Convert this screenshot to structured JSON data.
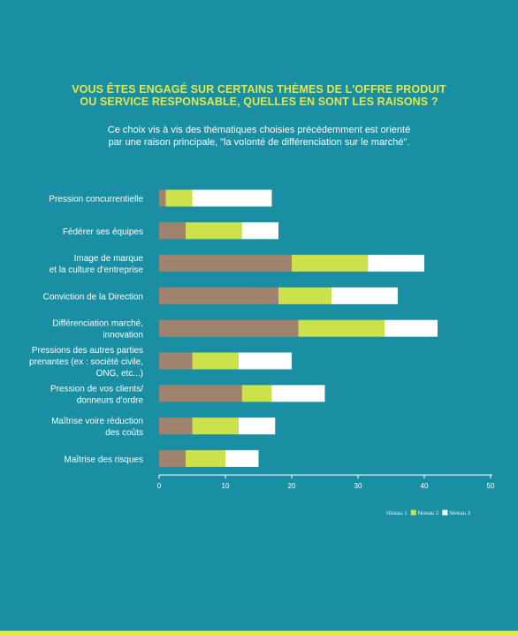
{
  "header": {
    "title_line1": "VOUS ÊTES ENGAGÉ SUR CERTAINS THÈMES DE L'OFFRE PRODUIT",
    "title_line2": "OU SERVICE RESPONSABLE, QUELLES EN SONT LES RAISONS ?",
    "subtitle_line1": "Ce choix vis à vis des thématiques choisies précédemment est orienté",
    "subtitle_line2": "par une raison principale, \"la volonté de différenciation sur le marché\"."
  },
  "colors": {
    "background": "#1a8ea3",
    "title": "#e3e84a",
    "niveau1": "#6b6b5a",
    "niveau2": "#a0836f",
    "niveau3": "#ffffff",
    "niveau2_fill": "#cde24a"
  },
  "chart_data": {
    "type": "bar",
    "orientation": "horizontal",
    "stacked": true,
    "categories": [
      [
        "Pression concurrentielle"
      ],
      [
        "Fédérer ses équipes"
      ],
      [
        "Image de marque",
        "et la culture d'entreprise"
      ],
      [
        "Conviction de la Direction"
      ],
      [
        "Différenciation marché,",
        "innovation"
      ],
      [
        "Pressions des autres parties",
        "prenantes (ex : société civile,",
        "ONG, etc...)"
      ],
      [
        "Pression de vos clients/",
        "donneurs d'ordre"
      ],
      [
        "Maîtrise voire réduction",
        "des coûts"
      ],
      [
        "Maîtrise des risques"
      ]
    ],
    "series": [
      {
        "name": "Niveau 1",
        "color": "#a0836f",
        "values": [
          1,
          4,
          20,
          18,
          21,
          5,
          12.5,
          5,
          4
        ]
      },
      {
        "name": "Niveau 2",
        "color": "#cde24a",
        "values": [
          4,
          8.5,
          11.5,
          8,
          13,
          7,
          4.5,
          7,
          6
        ]
      },
      {
        "name": "Niveau 3",
        "color": "#ffffff",
        "values": [
          12,
          5.5,
          8.5,
          10,
          8,
          8,
          8,
          5.5,
          5
        ]
      }
    ],
    "xlim": [
      0,
      50
    ],
    "xticks": [
      0,
      10,
      20,
      30,
      40,
      50
    ],
    "xtick_labels": [
      "0",
      "10",
      "20",
      "30",
      "40",
      "50"
    ],
    "legend_position": "bottom-right",
    "grid": false
  }
}
